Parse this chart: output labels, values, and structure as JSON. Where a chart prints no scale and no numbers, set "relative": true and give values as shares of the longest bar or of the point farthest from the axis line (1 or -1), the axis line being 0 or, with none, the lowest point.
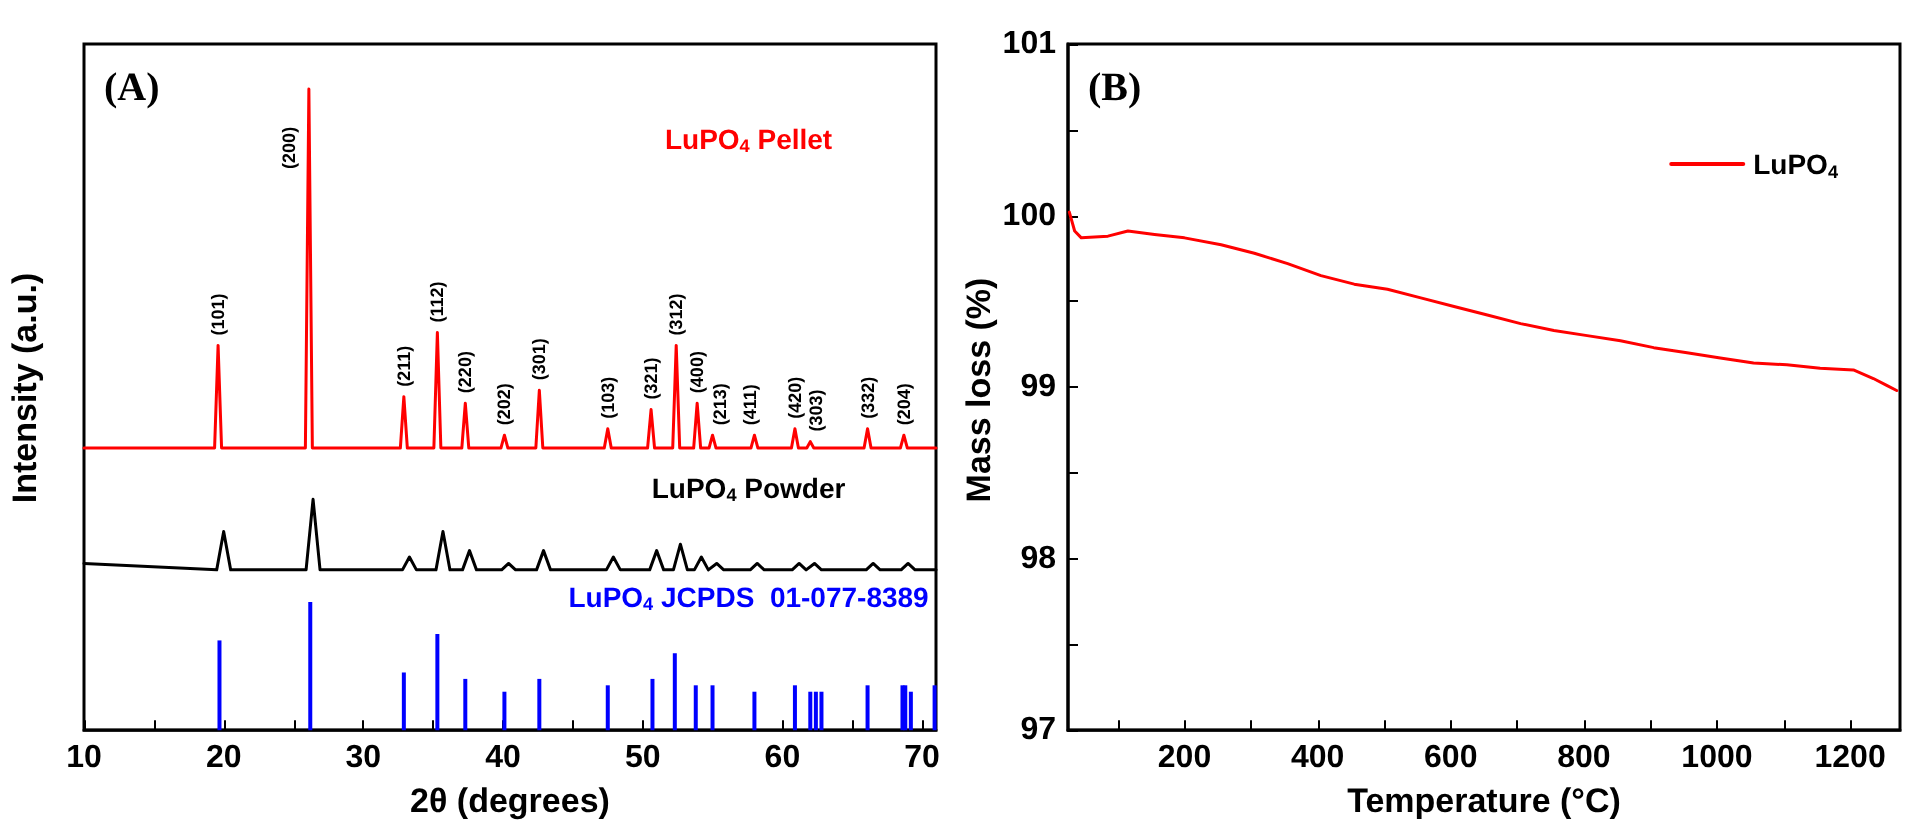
{
  "chart_data": [
    {
      "type": "line",
      "relative": true,
      "xlabel": "2θ (degrees)",
      "ylabel": "Intensity (a.u.)",
      "xlim": [
        10,
        71
      ],
      "xticks": [
        10,
        {
          "value": 15,
          "label": null
        },
        20,
        {
          "value": 25,
          "label": null
        },
        30,
        {
          "value": 35,
          "label": null
        },
        40,
        {
          "value": 45,
          "label": null
        },
        50,
        {
          "value": 55,
          "label": null
        },
        60,
        {
          "value": 65,
          "label": null
        },
        70
      ],
      "tick_labels": "x",
      "marker": "none",
      "series": [
        {
          "name": "LuPO$_{4}$ Pellet",
          "color": "#ff0000",
          "x": [
            10,
            19.35,
            19.6,
            19.85,
            25.85,
            26.1,
            26.35,
            32.65,
            32.9,
            33.15,
            35.05,
            35.3,
            35.55,
            37.05,
            37.3,
            37.55,
            39.85,
            40.1,
            40.35,
            42.35,
            42.6,
            42.85,
            47.25,
            47.5,
            47.75,
            50.35,
            50.6,
            50.85,
            52.15,
            52.4,
            52.65,
            53.65,
            53.9,
            54.15,
            54.75,
            55.0,
            55.25,
            57.75,
            58.0,
            58.25,
            60.65,
            60.9,
            61.15,
            61.75,
            62.0,
            62.25,
            65.85,
            66.1,
            66.35,
            68.45,
            68.7,
            68.95,
            71
          ],
          "values": [
            0.44,
            0.44,
            0.6,
            0.44,
            0.44,
            1.0,
            0.44,
            0.44,
            0.52,
            0.44,
            0.44,
            0.62,
            0.44,
            0.44,
            0.51,
            0.44,
            0.44,
            0.46,
            0.44,
            0.44,
            0.53,
            0.44,
            0.44,
            0.47,
            0.44,
            0.44,
            0.5,
            0.44,
            0.44,
            0.6,
            0.44,
            0.44,
            0.51,
            0.44,
            0.44,
            0.46,
            0.44,
            0.44,
            0.46,
            0.44,
            0.44,
            0.47,
            0.44,
            0.44,
            0.45,
            0.44,
            0.44,
            0.47,
            0.44,
            0.44,
            0.46,
            0.44,
            0.44
          ]
        },
        {
          "name": "LuPO$_{4}$ Powder",
          "color": "#000000",
          "x": [
            10,
            19.5,
            20.0,
            20.5,
            25.9,
            26.4,
            26.9,
            32.8,
            33.3,
            33.8,
            35.2,
            35.7,
            36.2,
            37.1,
            37.6,
            38.1,
            39.9,
            40.4,
            40.9,
            42.4,
            42.9,
            43.4,
            47.4,
            47.9,
            48.4,
            50.5,
            51.0,
            51.5,
            52.2,
            52.7,
            53.2,
            53.7,
            54.2,
            54.7,
            54.8,
            55.3,
            55.8,
            57.7,
            58.2,
            58.7,
            60.7,
            61.2,
            61.7,
            61.8,
            62.3,
            62.8,
            66.0,
            66.5,
            67.0,
            68.5,
            69.0,
            69.5,
            71
          ],
          "values": [
            0.26,
            0.25,
            0.31,
            0.25,
            0.25,
            0.36,
            0.25,
            0.25,
            0.27,
            0.25,
            0.25,
            0.31,
            0.25,
            0.25,
            0.28,
            0.25,
            0.25,
            0.26,
            0.25,
            0.25,
            0.28,
            0.25,
            0.25,
            0.27,
            0.25,
            0.25,
            0.28,
            0.25,
            0.25,
            0.29,
            0.25,
            0.25,
            0.27,
            0.25,
            0.25,
            0.26,
            0.25,
            0.25,
            0.26,
            0.25,
            0.25,
            0.26,
            0.25,
            0.25,
            0.26,
            0.25,
            0.25,
            0.26,
            0.25,
            0.25,
            0.26,
            0.25,
            0.25
          ]
        },
        {
          "name": "LuPO$_{4}$ JCPDS  01-077-8389",
          "type": "bar",
          "color": "#0000ff",
          "x": [
            19.7,
            26.2,
            32.9,
            35.3,
            37.3,
            40.1,
            42.6,
            47.5,
            50.7,
            52.3,
            53.8,
            55.0,
            58.0,
            60.9,
            62.0,
            62.4,
            62.8,
            66.1,
            68.6,
            68.8,
            69.2,
            70.9
          ],
          "values": [
            0.14,
            0.2,
            0.09,
            0.15,
            0.08,
            0.06,
            0.08,
            0.07,
            0.08,
            0.12,
            0.07,
            0.07,
            0.06,
            0.07,
            0.06,
            0.06,
            0.06,
            0.07,
            0.07,
            0.07,
            0.06,
            0.07
          ]
        }
      ],
      "annotations": [
        "(A)",
        {
          "text": "(101)",
          "x": 19.6,
          "y": 0.6
        },
        {
          "text": "(200)",
          "x": 26.1,
          "y": 1.0
        },
        {
          "text": "(211)",
          "x": 32.9,
          "y": 0.52
        },
        {
          "text": "(112)",
          "x": 35.3,
          "y": 0.62
        },
        {
          "text": "(220)",
          "x": 37.3,
          "y": 0.51
        },
        {
          "text": "(202)",
          "x": 40.1,
          "y": 0.46
        },
        {
          "text": "(301)",
          "x": 42.6,
          "y": 0.53
        },
        {
          "text": "(103)",
          "x": 47.5,
          "y": 0.47
        },
        {
          "text": "(321)",
          "x": 50.6,
          "y": 0.5
        },
        {
          "text": "(312)",
          "x": 52.4,
          "y": 0.6
        },
        {
          "text": "(400)",
          "x": 53.9,
          "y": 0.51
        },
        {
          "text": "(213)",
          "x": 55.5,
          "y": 0.46
        },
        {
          "text": "(411)",
          "x": 57.7,
          "y": 0.46
        },
        {
          "text": "(420)",
          "x": 60.9,
          "y": 0.47
        },
        {
          "text": "(303)",
          "x": 62.4,
          "y": 0.45
        },
        {
          "text": "(332)",
          "x": 66.1,
          "y": 0.47
        },
        {
          "text": "(204)",
          "x": 68.7,
          "y": 0.46
        }
      ]
    },
    {
      "type": "line",
      "xlabel": "Temperature (°C)",
      "ylabel": "Mass loss (%)",
      "xlim": [
        25,
        1275
      ],
      "ylim": [
        97,
        101
      ],
      "xticks": [
        {
          "value": 100,
          "label": null
        },
        200,
        {
          "value": 300,
          "label": null
        },
        400,
        {
          "value": 500,
          "label": null
        },
        600,
        {
          "value": 700,
          "label": null
        },
        800,
        {
          "value": 900,
          "label": null
        },
        1000,
        {
          "value": 1100,
          "label": null
        },
        1200
      ],
      "yticks": [
        97,
        {
          "value": 97.5,
          "label": null
        },
        98,
        {
          "value": 98.5,
          "label": null
        },
        99,
        {
          "value": 99.5,
          "label": null
        },
        100,
        {
          "value": 100.5,
          "label": null
        },
        101
      ],
      "legend": "top right",
      "marker": "none",
      "series": [
        {
          "name": "LuPO$_{4}$",
          "color": "#ff0000",
          "x": [
            27,
            35,
            45,
            85,
            115,
            155,
            200,
            255,
            305,
            355,
            405,
            455,
            505,
            555,
            605,
            655,
            705,
            755,
            805,
            855,
            905,
            955,
            1005,
            1055,
            1105,
            1155,
            1205,
            1235,
            1255,
            1270
          ],
          "values": [
            100.02,
            99.91,
            99.87,
            99.88,
            99.91,
            99.89,
            99.87,
            99.83,
            99.78,
            99.72,
            99.65,
            99.6,
            99.57,
            99.52,
            99.47,
            99.42,
            99.37,
            99.33,
            99.3,
            99.27,
            99.23,
            99.2,
            99.17,
            99.14,
            99.13,
            99.11,
            99.1,
            99.05,
            99.01,
            98.98
          ]
        }
      ],
      "annotations": [
        "(B)"
      ]
    }
  ]
}
